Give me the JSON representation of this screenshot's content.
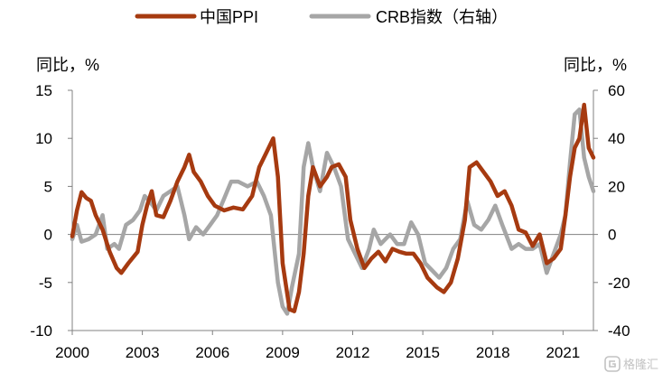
{
  "chart_data": {
    "type": "line",
    "legend_position": "top",
    "grid": false,
    "x_range": [
      2000,
      2022.3
    ],
    "x_ticks": [
      "2000",
      "2003",
      "2006",
      "2009",
      "2012",
      "2015",
      "2018",
      "2021"
    ],
    "y_left": {
      "label": "同比，%",
      "range": [
        -10,
        15
      ],
      "ticks": [
        "15",
        "10",
        "5",
        "0",
        "-5",
        "-10"
      ]
    },
    "y_right": {
      "label": "同比，%",
      "range": [
        -40,
        60
      ],
      "ticks": [
        "60",
        "40",
        "20",
        "0",
        "-20",
        "-40"
      ]
    },
    "series": [
      {
        "name": "中国PPI",
        "axis": "left",
        "color": "#a63a10",
        "points": [
          [
            2000.0,
            -0.2
          ],
          [
            2000.2,
            2.5
          ],
          [
            2000.4,
            4.4
          ],
          [
            2000.6,
            3.8
          ],
          [
            2000.8,
            3.5
          ],
          [
            2001.0,
            2.0
          ],
          [
            2001.3,
            0.5
          ],
          [
            2001.6,
            -1.8
          ],
          [
            2001.9,
            -3.5
          ],
          [
            2002.1,
            -4.0
          ],
          [
            2002.4,
            -3.0
          ],
          [
            2002.8,
            -1.8
          ],
          [
            2003.0,
            1.0
          ],
          [
            2003.2,
            3.0
          ],
          [
            2003.4,
            4.5
          ],
          [
            2003.6,
            2.0
          ],
          [
            2003.9,
            1.8
          ],
          [
            2004.2,
            3.5
          ],
          [
            2004.5,
            5.5
          ],
          [
            2004.8,
            7.0
          ],
          [
            2005.0,
            8.3
          ],
          [
            2005.2,
            6.5
          ],
          [
            2005.5,
            5.5
          ],
          [
            2005.8,
            4.0
          ],
          [
            2006.1,
            3.0
          ],
          [
            2006.5,
            2.5
          ],
          [
            2006.9,
            2.8
          ],
          [
            2007.3,
            2.6
          ],
          [
            2007.7,
            4.0
          ],
          [
            2008.0,
            7.0
          ],
          [
            2008.3,
            8.5
          ],
          [
            2008.6,
            10.0
          ],
          [
            2008.8,
            6.0
          ],
          [
            2009.0,
            -3.0
          ],
          [
            2009.3,
            -7.8
          ],
          [
            2009.5,
            -8.0
          ],
          [
            2009.7,
            -6.0
          ],
          [
            2009.9,
            -2.0
          ],
          [
            2010.1,
            4.0
          ],
          [
            2010.3,
            7.0
          ],
          [
            2010.6,
            5.0
          ],
          [
            2010.9,
            6.0
          ],
          [
            2011.1,
            7.0
          ],
          [
            2011.4,
            7.3
          ],
          [
            2011.7,
            6.0
          ],
          [
            2011.9,
            1.5
          ],
          [
            2012.2,
            -1.5
          ],
          [
            2012.5,
            -3.5
          ],
          [
            2012.8,
            -2.5
          ],
          [
            2013.1,
            -1.8
          ],
          [
            2013.4,
            -2.8
          ],
          [
            2013.7,
            -1.5
          ],
          [
            2014.0,
            -1.8
          ],
          [
            2014.3,
            -2.0
          ],
          [
            2014.6,
            -2.0
          ],
          [
            2014.9,
            -3.0
          ],
          [
            2015.2,
            -4.5
          ],
          [
            2015.6,
            -5.5
          ],
          [
            2015.9,
            -6.0
          ],
          [
            2016.2,
            -5.0
          ],
          [
            2016.5,
            -2.5
          ],
          [
            2016.8,
            1.5
          ],
          [
            2017.0,
            7.0
          ],
          [
            2017.3,
            7.5
          ],
          [
            2017.6,
            6.5
          ],
          [
            2017.9,
            5.5
          ],
          [
            2018.2,
            4.0
          ],
          [
            2018.5,
            4.5
          ],
          [
            2018.8,
            3.0
          ],
          [
            2019.1,
            0.5
          ],
          [
            2019.4,
            0.2
          ],
          [
            2019.7,
            -1.2
          ],
          [
            2020.0,
            0.0
          ],
          [
            2020.3,
            -3.0
          ],
          [
            2020.6,
            -2.5
          ],
          [
            2020.9,
            -1.5
          ],
          [
            2021.1,
            2.0
          ],
          [
            2021.3,
            6.0
          ],
          [
            2021.5,
            9.0
          ],
          [
            2021.7,
            10.0
          ],
          [
            2021.9,
            13.5
          ],
          [
            2022.1,
            9.0
          ],
          [
            2022.3,
            8.0
          ]
        ]
      },
      {
        "name": "CRB指数（右轴）",
        "axis": "right",
        "color": "#a6a6a6",
        "points": [
          [
            2000.0,
            -2
          ],
          [
            2000.2,
            4
          ],
          [
            2000.4,
            -3
          ],
          [
            2000.7,
            -2
          ],
          [
            2001.0,
            0
          ],
          [
            2001.3,
            8
          ],
          [
            2001.5,
            -6
          ],
          [
            2001.8,
            -4
          ],
          [
            2002.0,
            -6
          ],
          [
            2002.3,
            4
          ],
          [
            2002.6,
            6
          ],
          [
            2002.9,
            10
          ],
          [
            2003.1,
            16
          ],
          [
            2003.3,
            14
          ],
          [
            2003.6,
            10
          ],
          [
            2003.9,
            16
          ],
          [
            2004.2,
            18
          ],
          [
            2004.5,
            20
          ],
          [
            2004.8,
            8
          ],
          [
            2005.0,
            -2
          ],
          [
            2005.3,
            3
          ],
          [
            2005.6,
            0
          ],
          [
            2005.9,
            4
          ],
          [
            2006.2,
            8
          ],
          [
            2006.5,
            15
          ],
          [
            2006.8,
            22
          ],
          [
            2007.1,
            22
          ],
          [
            2007.5,
            20
          ],
          [
            2007.9,
            22
          ],
          [
            2008.2,
            16
          ],
          [
            2008.5,
            8
          ],
          [
            2008.8,
            -20
          ],
          [
            2009.0,
            -30
          ],
          [
            2009.2,
            -33
          ],
          [
            2009.4,
            -22
          ],
          [
            2009.7,
            -8
          ],
          [
            2009.9,
            28
          ],
          [
            2010.1,
            38
          ],
          [
            2010.3,
            28
          ],
          [
            2010.6,
            18
          ],
          [
            2010.9,
            34
          ],
          [
            2011.2,
            28
          ],
          [
            2011.5,
            20
          ],
          [
            2011.8,
            -2
          ],
          [
            2012.1,
            -8
          ],
          [
            2012.4,
            -14
          ],
          [
            2012.7,
            -6
          ],
          [
            2012.9,
            2
          ],
          [
            2013.2,
            -4
          ],
          [
            2013.6,
            0
          ],
          [
            2013.9,
            -4
          ],
          [
            2014.2,
            -4
          ],
          [
            2014.5,
            5
          ],
          [
            2014.8,
            0
          ],
          [
            2015.1,
            -12
          ],
          [
            2015.4,
            -15
          ],
          [
            2015.7,
            -18
          ],
          [
            2016.0,
            -14
          ],
          [
            2016.3,
            -6
          ],
          [
            2016.6,
            -2
          ],
          [
            2016.9,
            14
          ],
          [
            2017.2,
            4
          ],
          [
            2017.5,
            2
          ],
          [
            2017.8,
            6
          ],
          [
            2018.1,
            12
          ],
          [
            2018.4,
            4
          ],
          [
            2018.8,
            -6
          ],
          [
            2019.1,
            -4
          ],
          [
            2019.4,
            -6
          ],
          [
            2019.7,
            -6
          ],
          [
            2020.0,
            -4
          ],
          [
            2020.3,
            -16
          ],
          [
            2020.6,
            -8
          ],
          [
            2020.9,
            0
          ],
          [
            2021.1,
            8
          ],
          [
            2021.3,
            30
          ],
          [
            2021.5,
            50
          ],
          [
            2021.7,
            52
          ],
          [
            2021.9,
            32
          ],
          [
            2022.1,
            24
          ],
          [
            2022.3,
            18
          ]
        ]
      }
    ]
  },
  "watermark": {
    "text": "格隆汇",
    "icon": "gelonghui-logo-icon"
  }
}
